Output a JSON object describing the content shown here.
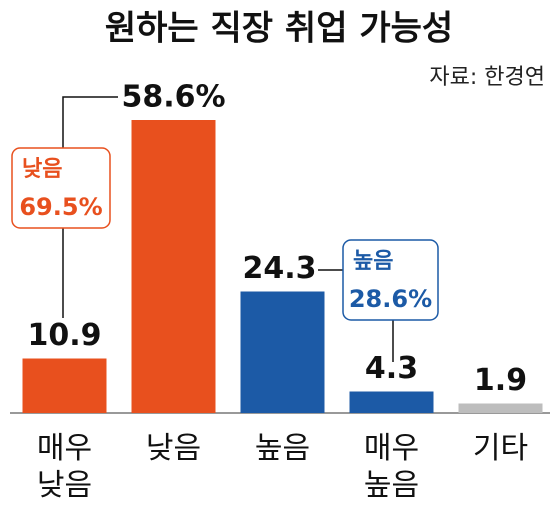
{
  "chart_data": {
    "type": "bar",
    "title": "원하는 직장 취업 가능성",
    "source": "자료: 한경연",
    "categories": [
      "매우\n낮음",
      "낮음",
      "높음",
      "매우\n높음",
      "기타"
    ],
    "values": [
      10.9,
      58.6,
      24.3,
      4.3,
      1.9
    ],
    "value_labels": [
      "10.9",
      "58.6%",
      "24.3",
      "4.3",
      "1.9"
    ],
    "colors": [
      "#e8501e",
      "#e8501e",
      "#1c5aa6",
      "#1c5aa6",
      "#bdbdbd"
    ],
    "annotations": [
      {
        "label": "낮음",
        "text": "69.5%",
        "color": "#e8501e"
      },
      {
        "label": "높음",
        "text": "28.6%",
        "color": "#1c5aa6"
      }
    ]
  }
}
